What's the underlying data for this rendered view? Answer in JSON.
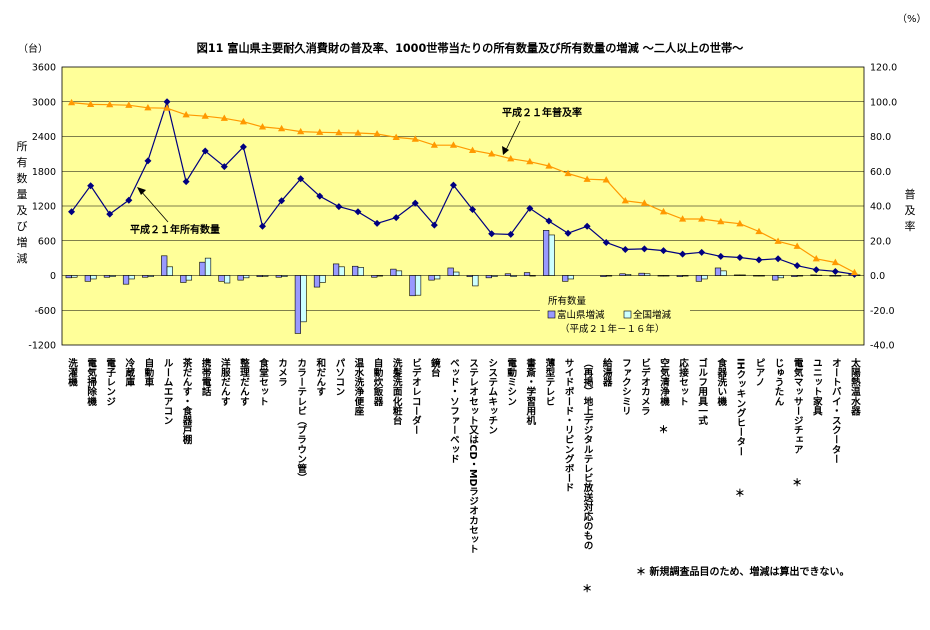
{
  "chart_data": {
    "type": "bar",
    "title": "図11 富山県主要耐久消費財の普及率、1000世帯当たりの所有数量及び所有数量の増減 ～二人以上の世帯～",
    "left_unit": "（台）",
    "right_unit": "（%）",
    "ylabel_left": "所有数量及び増減",
    "ylabel_right": "普及率",
    "ylim_left": [
      -1200,
      3600
    ],
    "ylim_right": [
      -40,
      120
    ],
    "left_ticks": [
      "3600",
      "3000",
      "2400",
      "1800",
      "1200",
      "600",
      "0",
      "-600",
      "-1200"
    ],
    "right_ticks": [
      "120.0",
      "100.0",
      "80.0",
      "60.0",
      "40.0",
      "20.0",
      "0.0",
      "-20.0",
      "-40.0"
    ],
    "grid": true,
    "categories": [
      "洗濯機",
      "電気掃除機",
      "電子レンジ",
      "冷蔵庫",
      "自動車",
      "ルームエアコン",
      "茶だんす・食器戸棚",
      "携帯電話",
      "洋服だんす",
      "整理だんす",
      "食堂セット",
      "カメラ",
      "カラーテレビ（ブラウン管）",
      "和だんす",
      "パソコン",
      "温水洗浄便座",
      "自動炊飯器",
      "洗髪洗面化粧台",
      "ビデオレコーダー",
      "鏡台",
      "ベッド・ソファーベッド",
      "ステレオセット又はCD・MDラジオカセット",
      "システムキッチン",
      "電動ミシン",
      "書斎・学習用机",
      "薄型テレビ",
      "サイドボード・リビングボード",
      "（再掲）地上デジタルテレビ放送対応のもの",
      "給湯器",
      "ファクシミリ",
      "ビデオカメラ",
      "空気清浄機",
      "応接セット",
      "ゴルフ用具一式",
      "食器洗い機",
      "IHクッキングヒーター",
      "ピアノ",
      "じゅうたん",
      "電気マッサージチェア",
      "ユニット家具",
      "オートバイ・スクーター",
      "太陽熱温水器"
    ],
    "starred": [
      "（再掲）地上デジタルテレビ放送対応のもの",
      "空気清浄機",
      "IHクッキングヒーター",
      "電気マッサージチェア"
    ],
    "star_mark": "＊",
    "series": [
      {
        "name": "富山県増減",
        "kind": "bar",
        "axis": "left",
        "color": "#9999ff",
        "values": [
          -40,
          -100,
          -30,
          -150,
          -30,
          340,
          -120,
          230,
          -100,
          -80,
          -20,
          -30,
          -1000,
          -200,
          200,
          160,
          -30,
          110,
          -350,
          -80,
          130,
          -20,
          -40,
          30,
          50,
          780,
          -100,
          0,
          -20,
          30,
          40,
          -10,
          -20,
          -100,
          130,
          10,
          -10,
          -80,
          -20,
          10,
          -10,
          20
        ]
      },
      {
        "name": "全国増減",
        "kind": "bar",
        "axis": "left",
        "color": "#ccffff",
        "values": [
          -30,
          -60,
          -20,
          -60,
          -20,
          150,
          -80,
          300,
          -130,
          -40,
          -15,
          -20,
          -800,
          -120,
          150,
          140,
          -10,
          80,
          -340,
          -60,
          60,
          -180,
          -20,
          -20,
          -10,
          700,
          -60,
          0,
          -10,
          20,
          30,
          -10,
          -10,
          -60,
          80,
          10,
          -10,
          -40,
          -10,
          5,
          -10,
          10
        ]
      },
      {
        "name": "平成２１年所有数量",
        "kind": "line",
        "axis": "left",
        "color": "#000080",
        "marker": "diamond",
        "values": [
          1100,
          1550,
          1060,
          1300,
          1980,
          3000,
          1620,
          2150,
          1880,
          2220,
          850,
          1290,
          1670,
          1370,
          1190,
          1100,
          900,
          1000,
          1250,
          870,
          1560,
          1140,
          720,
          710,
          1160,
          940,
          730,
          850,
          570,
          450,
          460,
          430,
          370,
          400,
          330,
          310,
          270,
          290,
          170,
          100,
          70,
          20
        ]
      },
      {
        "name": "平成２１年普及率",
        "kind": "line",
        "axis": "right",
        "color": "#ff9900",
        "marker": "triangle",
        "values": [
          99.5,
          98.5,
          98.3,
          98.0,
          96.5,
          96.3,
          92.5,
          91.7,
          90.5,
          88.5,
          85.5,
          84.5,
          82.8,
          82.4,
          82.2,
          82.0,
          81.5,
          79.5,
          78.5,
          75.0,
          75.0,
          72.0,
          70.0,
          67.2,
          65.5,
          63.0,
          58.7,
          55.4,
          55.0,
          43.0,
          41.6,
          36.7,
          32.5,
          32.5,
          31.0,
          29.8,
          25.3,
          19.7,
          16.8,
          9.6,
          7.5,
          1.7
        ]
      }
    ],
    "annotation_rate": "平成２１年普及率",
    "annotation_count": "平成２１年所有数量",
    "legend_title": "所有数量",
    "legend_period": "（平成２１年－１６年）",
    "legend_position": "bottom-right inside plot",
    "footnote": "＊ 新規調査品目のため、増減は算出できない。"
  },
  "colors": {
    "plot_background": "#ffff99",
    "page_background": "#ffffff"
  }
}
